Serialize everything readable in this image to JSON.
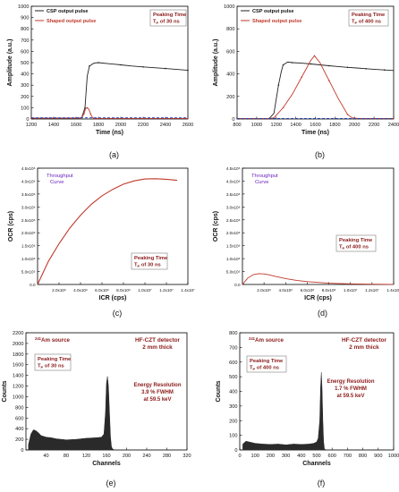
{
  "colors": {
    "black": "#222222",
    "red": "#c0392b",
    "blue": "#1f3fbf",
    "purple": "#6a1fbf",
    "darkred": "#8b1a1a",
    "fill": "#2a2a2a",
    "box": "#ffffff"
  },
  "panels": [
    {
      "caption": "(a)",
      "xlabel": "Time (ns)",
      "ylabel": "Amplitude (a.u.)",
      "xticks": [
        "1200",
        "1400",
        "1600",
        "1800",
        "2000",
        "2200",
        "2400",
        "2600"
      ],
      "yticks": [
        "0",
        "100",
        "200",
        "300",
        "400",
        "500",
        "600",
        "700",
        "800",
        "900",
        "1000"
      ],
      "legend": [
        {
          "label": "CSP output pulse",
          "color": "#222222"
        },
        {
          "label": "Shaped output pulse",
          "color": "#c0392b"
        }
      ],
      "annotation": {
        "line1": "Peaking Time",
        "line2": "T",
        "sub": "P",
        "line2_rest": " of 30 ns"
      }
    },
    {
      "caption": "(b)",
      "xlabel": "Time (ns)",
      "ylabel": "Amplitude (a.u.)",
      "xticks": [
        "800",
        "1000",
        "1200",
        "1400",
        "1600",
        "1800",
        "2000",
        "2200",
        "2400"
      ],
      "yticks": [
        "0",
        "200",
        "400",
        "600",
        "800",
        "1000"
      ],
      "legend": [
        {
          "label": "CSP output pulse",
          "color": "#222222"
        },
        {
          "label": "Shaped output pulse",
          "color": "#c0392b"
        }
      ],
      "annotation": {
        "line1": "Peaking Time",
        "line2": "T",
        "sub": "P",
        "line2_rest": " of 400 ns"
      }
    },
    {
      "caption": "(c)",
      "xlabel": "ICR (cps)",
      "ylabel": "OCR (cps)",
      "xticks": [
        "2.0x10⁶",
        "4.0x10⁶",
        "6.0x10⁶",
        "8.0x10⁶",
        "1.0x10⁷",
        "1.2x10⁷",
        "1.4x10⁷"
      ],
      "yticks": [
        "0.0",
        "5.0x10⁵",
        "1.0x10⁶",
        "1.5x10⁶",
        "2.0x10⁶",
        "2.5x10⁶",
        "3.0x10⁶",
        "3.5x10⁶",
        "4.0x10⁶",
        "4.5x10⁶"
      ],
      "curve_label": [
        "Throughput",
        "Curve"
      ],
      "annotation": {
        "line1": "Peaking Time",
        "line2": "T",
        "sub": "P",
        "line2_rest": " of 30 ns"
      }
    },
    {
      "caption": "(d)",
      "xlabel": "ICR (cps)",
      "ylabel": "OCR (cps)",
      "xticks": [
        "2.0x10⁶",
        "4.0x10⁶",
        "6.0x10⁶",
        "8.0x10⁶",
        "1.0x10⁷",
        "1.2x10⁷",
        "1.4x10⁷"
      ],
      "yticks": [
        "0.0",
        "5.0x10⁵",
        "1.0x10⁶",
        "1.5x10⁶",
        "2.0x10⁶",
        "2.5x10⁶",
        "3.0x10⁶",
        "3.5x10⁶",
        "4.0x10⁶",
        "4.5x10⁶"
      ],
      "curve_label": [
        "Throughput",
        "Curve"
      ],
      "annotation": {
        "line1": "Peaking Time",
        "line2": "T",
        "sub": "P",
        "line2_rest": " of 400 ns"
      }
    },
    {
      "caption": "(e)",
      "xlabel": "Channels",
      "ylabel": "Counts",
      "xticks": [
        "40",
        "80",
        "120",
        "160",
        "200",
        "240",
        "280",
        "320"
      ],
      "yticks": [
        "0",
        "200",
        "400",
        "600",
        "800",
        "1000",
        "1200",
        "1400",
        "1600",
        "1800",
        "2000",
        "2200"
      ],
      "source": {
        "sup": "241",
        "text": "Am source"
      },
      "detector": [
        "HF-CZT detector",
        "2 mm thick"
      ],
      "annotation": {
        "line1": "Peaking Time",
        "line2": "T",
        "sub": "P",
        "line2_rest": " of 30 ns"
      },
      "resolution": [
        "Energy Resolution",
        "3.9 % FWHM",
        "at 59.5 keV"
      ]
    },
    {
      "caption": "(f)",
      "xlabel": "Channels",
      "ylabel": "Counts",
      "xticks": [
        "0",
        "100",
        "200",
        "300",
        "400",
        "500",
        "600",
        "700",
        "800",
        "900",
        "1000"
      ],
      "yticks": [
        "0",
        "100",
        "200",
        "300",
        "400",
        "500",
        "600",
        "700",
        "800"
      ],
      "source": {
        "sup": "241",
        "text": "Am source"
      },
      "detector": [
        "HF-CZT detector",
        "2 mm thick"
      ],
      "annotation": {
        "line1": "Peaking Time",
        "line2": "T",
        "sub": "P",
        "line2_rest": " of 400 ns"
      },
      "resolution": [
        "Energy Resolution",
        "1.7 % FWHM",
        "at 59.5 keV"
      ]
    }
  ],
  "chart_data": [
    {
      "type": "line",
      "panel": "(a)",
      "xlim": [
        1200,
        2600
      ],
      "ylim": [
        0,
        1000
      ],
      "series": [
        {
          "name": "CSP output pulse",
          "color": "#222222",
          "x": [
            1200,
            1400,
            1600,
            1650,
            1680,
            1700,
            1720,
            1760,
            1800,
            1900,
            2000,
            2100,
            2200,
            2300,
            2400,
            2500,
            2600
          ],
          "y": [
            8,
            8,
            8,
            10,
            100,
            380,
            470,
            495,
            500,
            490,
            480,
            470,
            462,
            455,
            448,
            440,
            432
          ]
        },
        {
          "name": "Shaped output pulse",
          "color": "#c0392b",
          "x": [
            1200,
            1400,
            1600,
            1650,
            1670,
            1685,
            1700,
            1715,
            1730,
            1745,
            1760,
            1780,
            1800,
            2000,
            2200,
            2400,
            2600
          ],
          "y": [
            8,
            8,
            8,
            10,
            45,
            90,
            100,
            85,
            45,
            15,
            6,
            5,
            5,
            5,
            5,
            5,
            5
          ]
        },
        {
          "name": "Baseline",
          "color": "#1f3fbf",
          "dashed": true,
          "x": [
            1200,
            2600
          ],
          "y": [
            10,
            10
          ]
        }
      ]
    },
    {
      "type": "line",
      "panel": "(b)",
      "xlim": [
        800,
        2500
      ],
      "ylim": [
        0,
        1000
      ],
      "series": [
        {
          "name": "CSP output pulse",
          "color": "#222222",
          "x": [
            800,
            1000,
            1150,
            1200,
            1250,
            1280,
            1300,
            1350,
            1400,
            1500,
            1600,
            1700,
            1800,
            1900,
            2000,
            2100,
            2200,
            2300,
            2400,
            2500
          ],
          "y": [
            5,
            5,
            5,
            50,
            300,
            420,
            480,
            505,
            500,
            495,
            488,
            480,
            472,
            465,
            458,
            452,
            446,
            440,
            435,
            430
          ]
        },
        {
          "name": "Shaped output pulse",
          "color": "#c0392b",
          "x": [
            800,
            1000,
            1150,
            1200,
            1300,
            1400,
            1500,
            1600,
            1640,
            1700,
            1800,
            1900,
            2000,
            2050,
            2100,
            2500
          ],
          "y": [
            5,
            5,
            5,
            10,
            100,
            220,
            370,
            520,
            560,
            500,
            340,
            180,
            40,
            10,
            5,
            5
          ]
        },
        {
          "name": "Baseline",
          "color": "#1f3fbf",
          "dashed": true,
          "x": [
            800,
            2500
          ],
          "y": [
            5,
            5
          ]
        }
      ]
    },
    {
      "type": "line",
      "panel": "(c)",
      "xlim": [
        0,
        14000000
      ],
      "ylim": [
        0,
        4500000
      ],
      "series": [
        {
          "name": "Throughput Curve",
          "color": "#c0392b",
          "x": [
            0,
            1000000,
            2000000,
            3000000,
            4000000,
            5000000,
            6000000,
            7000000,
            8000000,
            9000000,
            10000000,
            11000000,
            12000000,
            13000000
          ],
          "y": [
            0,
            890000,
            1580000,
            2180000,
            2680000,
            3100000,
            3430000,
            3680000,
            3880000,
            4010000,
            4080000,
            4090000,
            4070000,
            4030000
          ]
        }
      ]
    },
    {
      "type": "line",
      "panel": "(d)",
      "xlim": [
        0,
        14000000
      ],
      "ylim": [
        0,
        4500000
      ],
      "series": [
        {
          "name": "Throughput Curve",
          "color": "#c0392b",
          "x": [
            0,
            500000,
            1000000,
            1500000,
            2000000,
            2500000,
            3000000,
            4000000,
            5000000,
            6000000,
            8000000,
            10000000,
            12000000,
            14000000
          ],
          "y": [
            0,
            250000,
            380000,
            420000,
            410000,
            370000,
            320000,
            230000,
            160000,
            110000,
            50000,
            25000,
            10000,
            5000
          ]
        }
      ]
    },
    {
      "type": "area",
      "panel": "(e)",
      "xlim": [
        0,
        320
      ],
      "ylim": [
        0,
        2200
      ],
      "series": [
        {
          "name": "Spectrum",
          "color": "#2a2a2a",
          "x": [
            5,
            10,
            15,
            20,
            25,
            30,
            40,
            50,
            60,
            80,
            100,
            120,
            140,
            150,
            155,
            158,
            160,
            162,
            164,
            166,
            168,
            170,
            172,
            175,
            180,
            200,
            250,
            320
          ],
          "y": [
            100,
            300,
            380,
            360,
            320,
            270,
            240,
            230,
            210,
            190,
            200,
            220,
            230,
            240,
            300,
            700,
            1250,
            1380,
            1200,
            700,
            250,
            60,
            20,
            5,
            2,
            0,
            0,
            0
          ]
        }
      ]
    },
    {
      "type": "area",
      "panel": "(f)",
      "xlim": [
        0,
        1000
      ],
      "ylim": [
        0,
        800
      ],
      "series": [
        {
          "name": "Spectrum",
          "color": "#2a2a2a",
          "x": [
            20,
            40,
            60,
            80,
            100,
            150,
            200,
            250,
            300,
            350,
            400,
            450,
            480,
            500,
            510,
            520,
            525,
            530,
            535,
            540,
            545,
            550,
            555,
            560,
            570,
            600,
            700,
            1000
          ],
          "y": [
            40,
            60,
            55,
            50,
            45,
            40,
            38,
            40,
            35,
            40,
            38,
            40,
            45,
            55,
            80,
            200,
            420,
            530,
            420,
            200,
            60,
            10,
            3,
            1,
            0,
            0,
            0,
            0
          ]
        }
      ]
    }
  ]
}
